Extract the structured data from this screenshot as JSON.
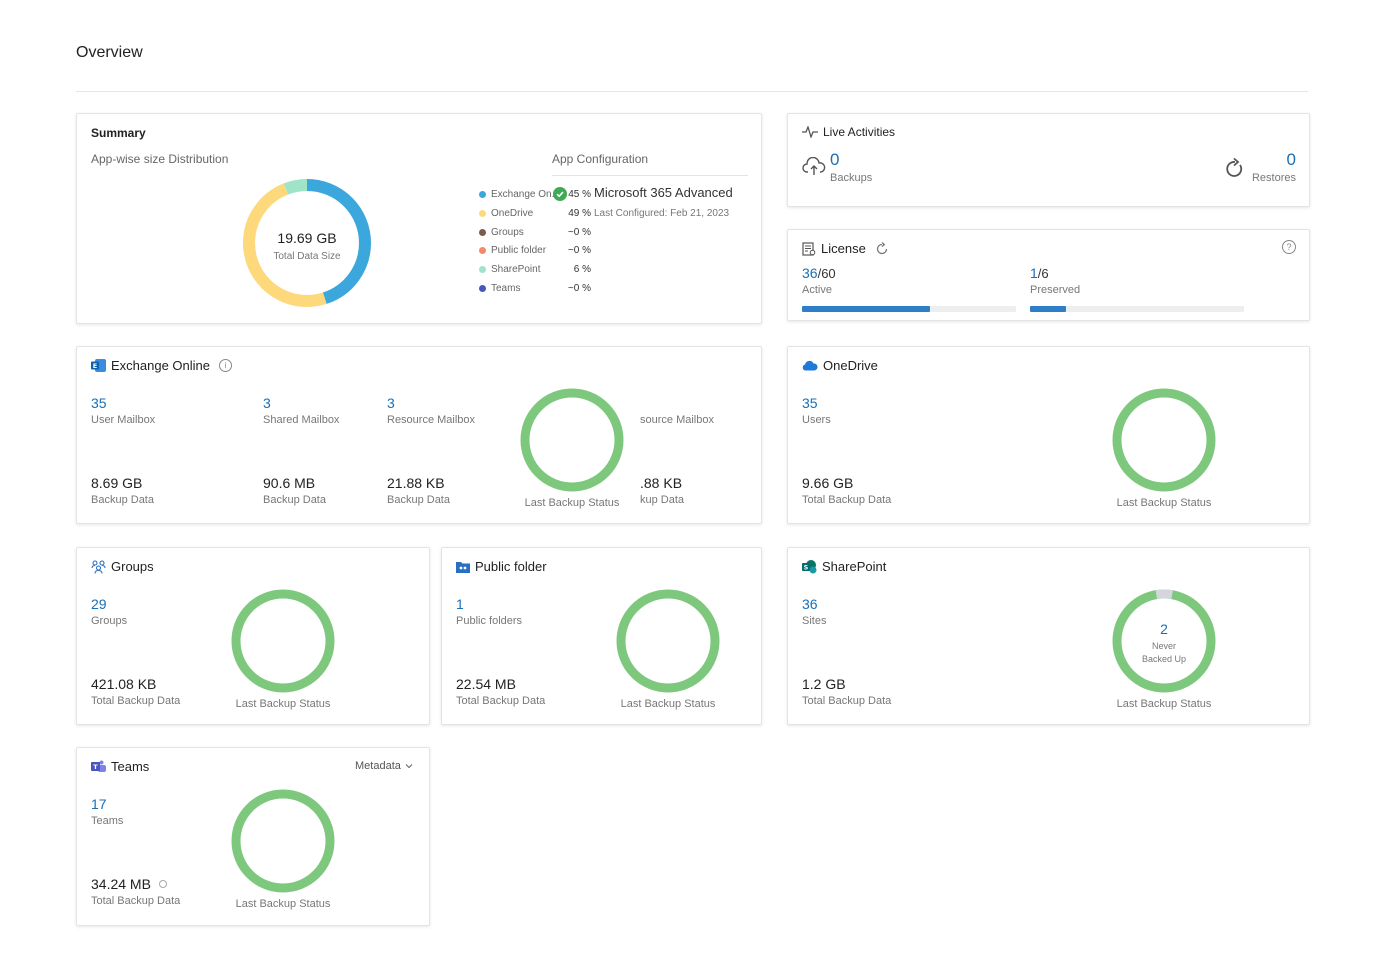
{
  "page": {
    "title": "Overview"
  },
  "summary": {
    "title": "Summary",
    "subtitle": "App-wise size Distribution",
    "total_value": "19.69 GB",
    "total_label": "Total Data Size",
    "legend": [
      {
        "name": "Exchange On...",
        "pct": "45 %",
        "color": "#3ba7dd"
      },
      {
        "name": "OneDrive",
        "pct": "49 %",
        "color": "#fdd97b"
      },
      {
        "name": "Groups",
        "pct": "~0 %",
        "color": "#7a5c4e"
      },
      {
        "name": "Public folder",
        "pct": "~0 %",
        "color": "#f08a6c"
      },
      {
        "name": "SharePoint",
        "pct": "6 %",
        "color": "#9fe3c9"
      },
      {
        "name": "Teams",
        "pct": "~0 %",
        "color": "#4a55b8"
      }
    ],
    "app_config_title": "App Configuration",
    "app_config_name": "Microsoft 365 Advanced",
    "app_config_date": "Last Configured: Feb 21, 2023",
    "donut": [
      {
        "app": "Exchange Online",
        "value": 45,
        "color": "#3ba7dd"
      },
      {
        "app": "OneDrive",
        "value": 49,
        "color": "#fdd97b"
      },
      {
        "app": "SharePoint",
        "value": 6,
        "color": "#9fe3c9"
      }
    ]
  },
  "live": {
    "title": "Live Activities",
    "backups_value": "0",
    "backups_label": "Backups",
    "restores_value": "0",
    "restores_label": "Restores"
  },
  "license": {
    "title": "License",
    "active_value": "36",
    "active_total": "/60",
    "active_label": "Active",
    "active_fraction": 0.6,
    "preserved_value": "1",
    "preserved_total": "/6",
    "preserved_label": "Preserved",
    "preserved_fraction": 0.1667
  },
  "exchange": {
    "title": "Exchange Online",
    "cols": [
      {
        "value": "35",
        "label": "User Mailbox",
        "size": "8.69 GB",
        "size_label": "Backup Data"
      },
      {
        "value": "3",
        "label": "Shared Mailbox",
        "size": "90.6 MB",
        "size_label": "Backup Data"
      },
      {
        "value": "3",
        "label": "Resource Mailbox",
        "size": "21.88 KB",
        "size_label": "Backup Data"
      }
    ],
    "partial_label": "source Mailbox",
    "partial_size": ".88 KB",
    "partial_size_label": "kup Data",
    "status_label": "Last Backup Status"
  },
  "onedrive": {
    "title": "OneDrive",
    "value": "35",
    "label": "Users",
    "size": "9.66 GB",
    "size_label": "Total Backup Data",
    "status_label": "Last Backup Status"
  },
  "groups": {
    "title": "Groups",
    "value": "29",
    "label": "Groups",
    "size": "421.08 KB",
    "size_label": "Total Backup Data",
    "status_label": "Last Backup Status"
  },
  "publicfolder": {
    "title": "Public folder",
    "value": "1",
    "label": "Public folders",
    "size": "22.54 MB",
    "size_label": "Total Backup Data",
    "status_label": "Last Backup Status"
  },
  "sharepoint": {
    "title": "SharePoint",
    "value": "36",
    "label": "Sites",
    "size": "1.2 GB",
    "size_label": "Total Backup Data",
    "status_label": "Last Backup Status",
    "ring_value": "2",
    "ring_label_1": "Never",
    "ring_label_2": "Backed Up",
    "never_fraction": 0.0556
  },
  "teams": {
    "title": "Teams",
    "dropdown": "Metadata",
    "value": "17",
    "label": "Teams",
    "size": "34.24 MB",
    "size_label": "Total Backup Data",
    "status_label": "Last Backup Status"
  },
  "colors": {
    "accent": "#1a6fb5",
    "ring_success": "#7dc87d",
    "ring_never": "#d3d7db"
  }
}
